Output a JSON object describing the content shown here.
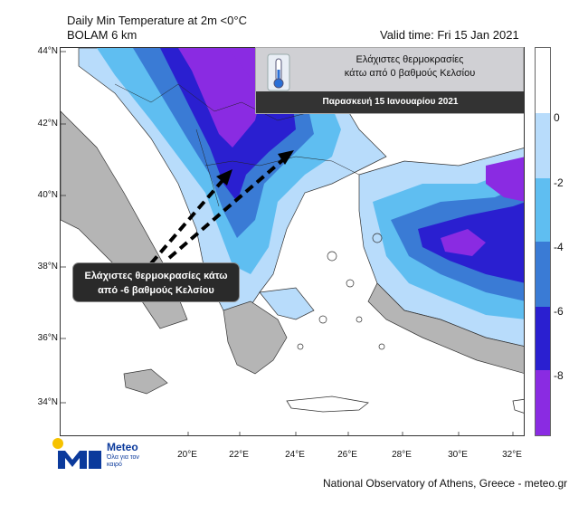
{
  "header": {
    "title_line1": "Daily Min Temperature at 2m <0°C",
    "title_line2": "BOLAM 6 km",
    "valid_time": "Valid time: Fri 15 Jan 2021"
  },
  "axes": {
    "lat_labels": [
      "44°N",
      "42°N",
      "40°N",
      "38°N",
      "36°N",
      "34°N"
    ],
    "lon_labels": [
      "20°E",
      "22°E",
      "24°E",
      "26°E",
      "28°E",
      "30°E",
      "32°E"
    ]
  },
  "colorbar": {
    "labels": [
      "0",
      "-2",
      "-4",
      "-6",
      "-8"
    ],
    "colors": [
      "#ffffff",
      "#b8dcfb",
      "#5fbef1",
      "#3a7bd5",
      "#2a1fd0",
      "#8a2be2"
    ]
  },
  "legend": {
    "line1": "Ελάχιστες θερμοκρασίες",
    "line2": "κάτω από 0 βαθμούς Κελσίου",
    "date": "Παρασκευή 15 Ιανουαρίου 2021"
  },
  "callout": {
    "line1": "Ελάχιστες θερμοκρασίες κάτω",
    "line2": "από -6 βαθμούς Κελσίου"
  },
  "logo": {
    "name": "Meteo",
    "tagline": "Όλα για τον καιρό"
  },
  "footer": {
    "credit": "National Observatory of Athens, Greece - meteo.gr"
  }
}
